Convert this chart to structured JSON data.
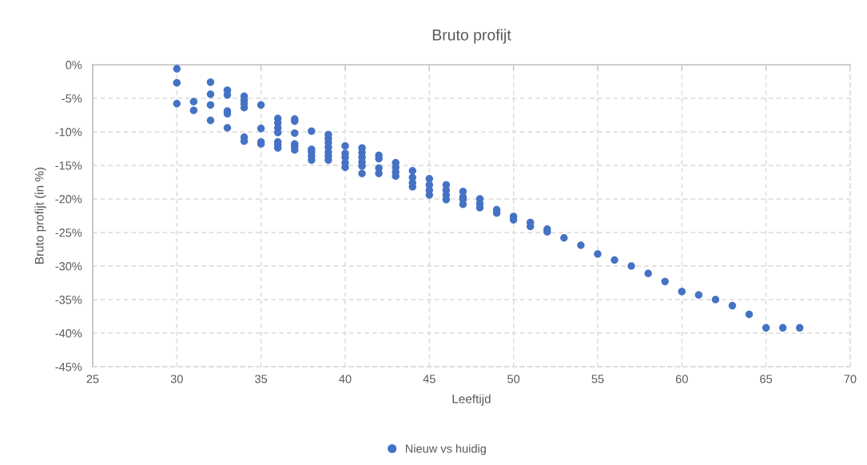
{
  "chart_data": {
    "type": "scatter",
    "title": "Bruto profijt",
    "xlabel": "Leeftijd",
    "ylabel": "Bruto profijt (in %)",
    "series": [
      {
        "name": "Nieuw vs huidig",
        "color": "#4472c4",
        "x": [
          30,
          30,
          30,
          31,
          31,
          32,
          32,
          32,
          32,
          33,
          33,
          33,
          33,
          33,
          34,
          34,
          34,
          34,
          34,
          34,
          35,
          35,
          35,
          35,
          36,
          36,
          36,
          36,
          36,
          36,
          36,
          37,
          37,
          37,
          37,
          37,
          37,
          38,
          38,
          38,
          38,
          38,
          39,
          39,
          39,
          39,
          39,
          39,
          39,
          40,
          40,
          40,
          40,
          40,
          41,
          41,
          41,
          41,
          41,
          41,
          42,
          42,
          42,
          42,
          43,
          43,
          43,
          43,
          44,
          44,
          44,
          44,
          45,
          45,
          45,
          45,
          46,
          46,
          46,
          46,
          47,
          47,
          47,
          47,
          48,
          48,
          48,
          49,
          49,
          50,
          50,
          51,
          51,
          52,
          52,
          53,
          54,
          55,
          56,
          57,
          58,
          59,
          60,
          61,
          62,
          63,
          64,
          65,
          66,
          67
        ],
        "values": [
          -0.6,
          -2.7,
          -5.8,
          -5.5,
          -6.8,
          -2.6,
          -4.4,
          -6.0,
          -8.3,
          -3.8,
          -4.5,
          -6.9,
          -7.3,
          -9.4,
          -4.7,
          -5.3,
          -5.8,
          -6.4,
          -10.8,
          -11.4,
          -6.0,
          -9.5,
          -11.5,
          -11.8,
          -8.0,
          -8.7,
          -9.4,
          -10.1,
          -11.5,
          -11.9,
          -12.4,
          -8.1,
          -8.4,
          -10.2,
          -11.8,
          -12.2,
          -12.7,
          -9.9,
          -12.6,
          -13.0,
          -13.6,
          -14.2,
          -10.4,
          -11.0,
          -11.6,
          -12.3,
          -13.0,
          -13.6,
          -14.2,
          -12.1,
          -13.2,
          -13.8,
          -14.6,
          -15.3,
          -12.4,
          -13.1,
          -13.8,
          -14.5,
          -15.1,
          -16.2,
          -13.5,
          -14.0,
          -15.4,
          -16.2,
          -14.6,
          -15.3,
          -16.0,
          -16.6,
          -15.8,
          -16.8,
          -17.6,
          -18.2,
          -17.0,
          -17.9,
          -18.7,
          -19.4,
          -17.9,
          -18.7,
          -19.4,
          -20.1,
          -18.9,
          -19.7,
          -20.1,
          -20.8,
          -20.0,
          -20.7,
          -21.3,
          -21.6,
          -22.1,
          -22.6,
          -23.1,
          -23.5,
          -24.1,
          -24.5,
          -24.9,
          -25.8,
          -26.9,
          -28.2,
          -29.1,
          -30.0,
          -31.1,
          -32.3,
          -33.8,
          -34.3,
          -35.0,
          -35.9,
          -37.2,
          -39.2,
          -39.2,
          -39.2
        ]
      }
    ],
    "xlim": [
      25,
      70
    ],
    "xticks": [
      25,
      30,
      35,
      40,
      45,
      50,
      55,
      60,
      65,
      70
    ],
    "ylim": [
      -45,
      0
    ],
    "yticks": [
      {
        "value": 0,
        "label": "0%"
      },
      {
        "value": -5,
        "label": "-5%"
      },
      {
        "value": -10,
        "label": "-10%"
      },
      {
        "value": -15,
        "label": "-15%"
      },
      {
        "value": -20,
        "label": "-20%"
      },
      {
        "value": -25,
        "label": "-25%"
      },
      {
        "value": -30,
        "label": "-30%"
      },
      {
        "value": -35,
        "label": "-35%"
      },
      {
        "value": -40,
        "label": "-40%"
      },
      {
        "value": -45,
        "label": "-45%"
      }
    ],
    "grid": true,
    "legend": "bottom",
    "marker": "circle"
  }
}
